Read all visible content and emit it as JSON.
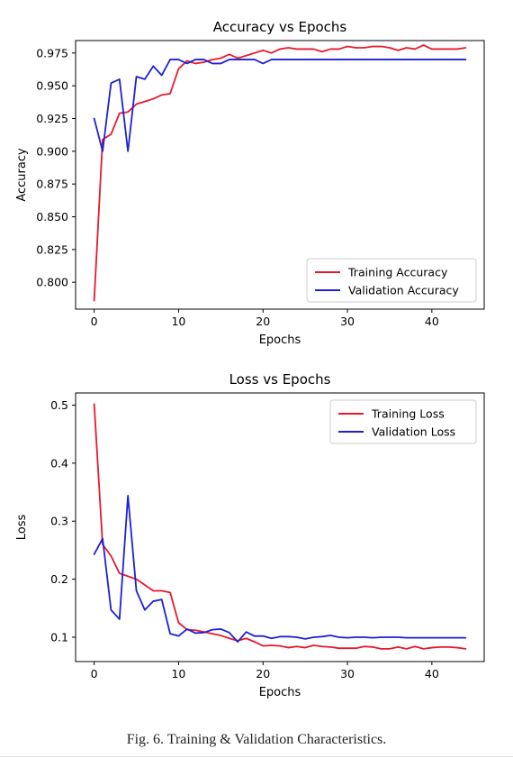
{
  "chart_data": [
    {
      "type": "line",
      "title": "Accuracy vs Epochs",
      "xlabel": "Epochs",
      "ylabel": "Accuracy",
      "xlim": [
        -2.2,
        46.2
      ],
      "ylim": [
        0.7795,
        0.9845
      ],
      "xticks": [
        0,
        10,
        20,
        30,
        40
      ],
      "xtick_labels": [
        "0",
        "10",
        "20",
        "30",
        "40"
      ],
      "yticks": [
        0.8,
        0.825,
        0.85,
        0.875,
        0.9,
        0.925,
        0.95,
        0.975
      ],
      "ytick_labels": [
        "0.800",
        "0.825",
        "0.850",
        "0.875",
        "0.900",
        "0.925",
        "0.950",
        "0.975"
      ],
      "legend_position": "lower-right",
      "grid": false,
      "x": [
        0,
        1,
        2,
        3,
        4,
        5,
        6,
        7,
        8,
        9,
        10,
        11,
        12,
        13,
        14,
        15,
        16,
        17,
        18,
        19,
        20,
        21,
        22,
        23,
        24,
        25,
        26,
        27,
        28,
        29,
        30,
        31,
        32,
        33,
        34,
        35,
        36,
        37,
        38,
        39,
        40,
        41,
        42,
        43,
        44
      ],
      "series": [
        {
          "name": "Training Accuracy",
          "color": "#e8192c",
          "values": [
            0.786,
            0.909,
            0.913,
            0.929,
            0.93,
            0.936,
            0.938,
            0.94,
            0.943,
            0.944,
            0.963,
            0.969,
            0.967,
            0.968,
            0.97,
            0.971,
            0.974,
            0.971,
            0.973,
            0.975,
            0.977,
            0.975,
            0.978,
            0.979,
            0.978,
            0.978,
            0.978,
            0.976,
            0.978,
            0.978,
            0.98,
            0.979,
            0.979,
            0.98,
            0.98,
            0.979,
            0.977,
            0.979,
            0.978,
            0.981,
            0.978,
            0.978,
            0.978,
            0.978,
            0.979
          ]
        },
        {
          "name": "Validation Accuracy",
          "color": "#1f1fd6",
          "values": [
            0.925,
            0.9,
            0.952,
            0.955,
            0.9,
            0.957,
            0.955,
            0.965,
            0.958,
            0.97,
            0.97,
            0.967,
            0.97,
            0.97,
            0.967,
            0.967,
            0.97,
            0.97,
            0.97,
            0.97,
            0.967,
            0.97,
            0.97,
            0.97,
            0.97,
            0.97,
            0.97,
            0.97,
            0.97,
            0.97,
            0.97,
            0.97,
            0.97,
            0.97,
            0.97,
            0.97,
            0.97,
            0.97,
            0.97,
            0.97,
            0.97,
            0.97,
            0.97,
            0.97,
            0.97
          ]
        }
      ]
    },
    {
      "type": "line",
      "title": "Loss vs Epochs",
      "xlabel": "Epochs",
      "ylabel": "Loss",
      "xlim": [
        -2.2,
        46.2
      ],
      "ylim": [
        0.058,
        0.521
      ],
      "xticks": [
        0,
        10,
        20,
        30,
        40
      ],
      "xtick_labels": [
        "0",
        "10",
        "20",
        "30",
        "40"
      ],
      "yticks": [
        0.1,
        0.2,
        0.3,
        0.4,
        0.5
      ],
      "ytick_labels": [
        "0.1",
        "0.2",
        "0.3",
        "0.4",
        "0.5"
      ],
      "legend_position": "upper-right",
      "grid": false,
      "x": [
        0,
        1,
        2,
        3,
        4,
        5,
        6,
        7,
        8,
        9,
        10,
        11,
        12,
        13,
        14,
        15,
        16,
        17,
        18,
        19,
        20,
        21,
        22,
        23,
        24,
        25,
        26,
        27,
        28,
        29,
        30,
        31,
        32,
        33,
        34,
        35,
        36,
        37,
        38,
        39,
        40,
        41,
        42,
        43,
        44
      ],
      "series": [
        {
          "name": "Training Loss",
          "color": "#e8192c",
          "values": [
            0.502,
            0.26,
            0.24,
            0.21,
            0.205,
            0.2,
            0.19,
            0.18,
            0.18,
            0.177,
            0.125,
            0.113,
            0.112,
            0.109,
            0.106,
            0.103,
            0.098,
            0.094,
            0.098,
            0.092,
            0.085,
            0.086,
            0.085,
            0.082,
            0.084,
            0.082,
            0.086,
            0.084,
            0.083,
            0.081,
            0.081,
            0.081,
            0.084,
            0.083,
            0.08,
            0.08,
            0.083,
            0.08,
            0.084,
            0.08,
            0.082,
            0.083,
            0.083,
            0.082,
            0.08
          ]
        },
        {
          "name": "Validation Loss",
          "color": "#1f1fd6",
          "values": [
            0.243,
            0.27,
            0.147,
            0.131,
            0.344,
            0.18,
            0.147,
            0.162,
            0.165,
            0.106,
            0.102,
            0.114,
            0.107,
            0.108,
            0.113,
            0.114,
            0.108,
            0.092,
            0.109,
            0.102,
            0.102,
            0.098,
            0.101,
            0.101,
            0.1,
            0.097,
            0.1,
            0.101,
            0.103,
            0.1,
            0.099,
            0.1,
            0.1,
            0.099,
            0.1,
            0.1,
            0.1,
            0.099,
            0.099,
            0.099,
            0.099,
            0.099,
            0.099,
            0.099,
            0.099
          ]
        }
      ]
    }
  ],
  "caption": "Fig. 6.   Training & Validation Characteristics."
}
